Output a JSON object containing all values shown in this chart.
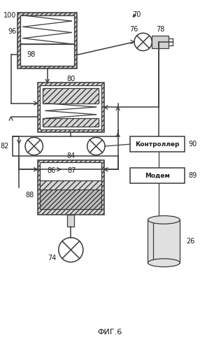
{
  "title": "ФИГ.6",
  "bg_color": "#ffffff",
  "line_color": "#3a3a3a",
  "controller_text": "Контроллер",
  "modem_text": "Модем",
  "label_70": "70",
  "label_74": "74",
  "label_76": "76",
  "label_78": "78",
  "label_80": "80",
  "label_82": "82",
  "label_84": "84",
  "label_86": "86",
  "label_87": "87",
  "label_88": "88",
  "label_89": "89",
  "label_90": "90",
  "label_96": "96",
  "label_98": "98",
  "label_100": "100",
  "label_26": "26"
}
